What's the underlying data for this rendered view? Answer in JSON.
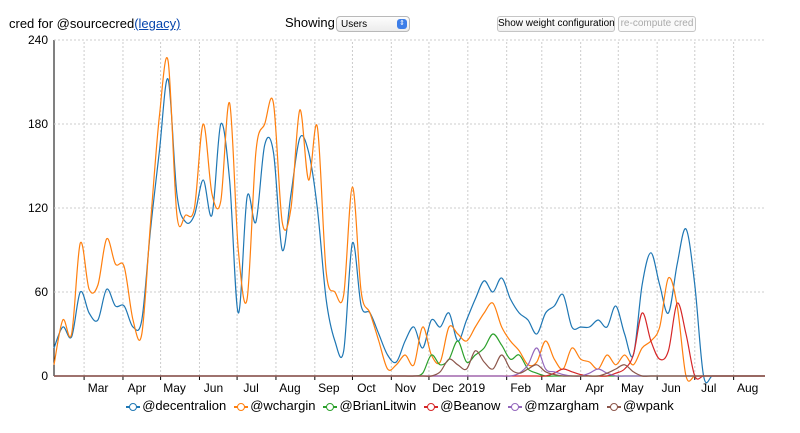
{
  "header": {
    "title_prefix": "cred for @sourcecred",
    "legacy_link": "(legacy)",
    "showing_label": "Showing:",
    "showing_value": "Users",
    "weight_button": "Show weight configuration",
    "recompute_button": "re-compute cred"
  },
  "chart_data": {
    "type": "line",
    "title": "",
    "xlabel": "",
    "ylabel": "",
    "ylim": [
      0,
      240
    ],
    "yticks": [
      0,
      60,
      120,
      180,
      240
    ],
    "x_tick_labels": [
      "Mar",
      "Apr",
      "May",
      "Jun",
      "Jul",
      "Aug",
      "Sep",
      "Oct",
      "Nov",
      "Dec",
      "2019",
      "Feb",
      "Mar",
      "Apr",
      "May",
      "Jun",
      "Jul",
      "Aug"
    ],
    "grid": true,
    "legend_position": "bottom",
    "x": [
      "2018-02-05",
      "2018-02-12",
      "2018-02-19",
      "2018-02-26",
      "2018-03-05",
      "2018-03-12",
      "2018-03-19",
      "2018-03-26",
      "2018-04-02",
      "2018-04-09",
      "2018-04-16",
      "2018-04-23",
      "2018-04-30",
      "2018-05-07",
      "2018-05-14",
      "2018-05-21",
      "2018-05-28",
      "2018-06-04",
      "2018-06-11",
      "2018-06-18",
      "2018-06-25",
      "2018-07-02",
      "2018-07-09",
      "2018-07-16",
      "2018-07-23",
      "2018-07-30",
      "2018-08-06",
      "2018-08-13",
      "2018-08-20",
      "2018-08-27",
      "2018-09-03",
      "2018-09-10",
      "2018-09-17",
      "2018-09-24",
      "2018-10-01",
      "2018-10-08",
      "2018-10-15",
      "2018-10-22",
      "2018-10-29",
      "2018-11-05",
      "2018-11-12",
      "2018-11-19",
      "2018-11-26",
      "2018-12-03",
      "2018-12-10",
      "2018-12-17",
      "2018-12-24",
      "2018-12-31",
      "2019-01-07",
      "2019-01-14",
      "2019-01-21",
      "2019-01-28",
      "2019-02-04",
      "2019-02-11",
      "2019-02-18",
      "2019-02-25",
      "2019-03-04",
      "2019-03-11",
      "2019-03-18",
      "2019-03-25",
      "2019-04-01",
      "2019-04-08",
      "2019-04-15",
      "2019-04-22",
      "2019-04-29",
      "2019-05-06",
      "2019-05-13",
      "2019-05-20",
      "2019-05-27",
      "2019-06-03",
      "2019-06-10",
      "2019-06-17",
      "2019-06-24",
      "2019-07-01",
      "2019-07-08",
      "2019-07-15",
      "2019-07-22",
      "2019-07-29",
      "2019-08-05",
      "2019-08-12",
      "2019-08-19",
      "2019-08-26"
    ],
    "series": [
      {
        "name": "@decentralion",
        "color": "#1f77b4",
        "values": [
          20,
          35,
          28,
          60,
          45,
          40,
          62,
          50,
          50,
          35,
          40,
          105,
          160,
          212,
          130,
          110,
          115,
          140,
          115,
          180,
          140,
          45,
          128,
          110,
          165,
          160,
          90,
          130,
          170,
          160,
          120,
          55,
          25,
          18,
          95,
          50,
          45,
          30,
          15,
          10,
          25,
          35,
          20,
          40,
          35,
          45,
          25,
          40,
          55,
          68,
          60,
          70,
          55,
          45,
          40,
          30,
          45,
          50,
          58,
          35,
          35,
          35,
          40,
          35,
          50,
          30,
          15,
          65,
          88,
          65,
          45,
          80,
          105,
          65,
          0,
          0,
          0,
          0,
          0,
          0,
          0,
          0
        ]
      },
      {
        "name": "@wchargin",
        "color": "#ff7f0e",
        "values": [
          8,
          40,
          30,
          95,
          62,
          65,
          98,
          80,
          78,
          40,
          30,
          110,
          185,
          225,
          115,
          115,
          120,
          180,
          130,
          125,
          195,
          90,
          55,
          160,
          180,
          195,
          110,
          120,
          190,
          140,
          178,
          75,
          60,
          58,
          135,
          60,
          45,
          25,
          5,
          8,
          15,
          8,
          35,
          15,
          10,
          35,
          30,
          25,
          35,
          45,
          52,
          35,
          25,
          18,
          8,
          10,
          25,
          12,
          5,
          20,
          12,
          10,
          5,
          15,
          8,
          15,
          8,
          20,
          25,
          35,
          70,
          50,
          0,
          0,
          0,
          0,
          0,
          0,
          0,
          0,
          0,
          0
        ]
      },
      {
        "name": "@BrianLitwin",
        "color": "#2ca02c",
        "values": [
          0,
          0,
          0,
          0,
          0,
          0,
          0,
          0,
          0,
          0,
          0,
          0,
          0,
          0,
          0,
          0,
          0,
          0,
          0,
          0,
          0,
          0,
          0,
          0,
          0,
          0,
          0,
          0,
          0,
          0,
          0,
          0,
          0,
          0,
          0,
          0,
          0,
          0,
          0,
          0,
          0,
          0,
          2,
          15,
          8,
          12,
          25,
          10,
          15,
          20,
          30,
          22,
          12,
          15,
          5,
          2,
          0,
          0,
          0,
          0,
          0,
          0,
          0,
          0,
          0,
          0,
          0,
          0,
          0,
          0,
          0,
          0,
          0,
          0,
          0,
          0,
          0,
          0,
          0,
          0,
          0,
          0
        ]
      },
      {
        "name": "@Beanow",
        "color": "#d62728",
        "values": [
          0,
          0,
          0,
          0,
          0,
          0,
          0,
          0,
          0,
          0,
          0,
          0,
          0,
          0,
          0,
          0,
          0,
          0,
          0,
          0,
          0,
          0,
          0,
          0,
          0,
          0,
          0,
          0,
          0,
          0,
          0,
          0,
          0,
          0,
          0,
          0,
          0,
          0,
          0,
          0,
          0,
          0,
          0,
          0,
          0,
          0,
          0,
          0,
          0,
          0,
          0,
          0,
          0,
          0,
          0,
          0,
          0,
          2,
          5,
          3,
          1,
          0,
          0,
          0,
          2,
          5,
          15,
          45,
          25,
          12,
          18,
          52,
          30,
          0,
          0,
          0,
          0,
          0,
          0,
          0,
          0,
          0
        ]
      },
      {
        "name": "@mzargham",
        "color": "#9467bd",
        "values": [
          0,
          0,
          0,
          0,
          0,
          0,
          0,
          0,
          0,
          0,
          0,
          0,
          0,
          0,
          0,
          0,
          0,
          0,
          0,
          0,
          0,
          0,
          0,
          0,
          0,
          0,
          0,
          0,
          0,
          0,
          0,
          0,
          0,
          0,
          0,
          0,
          0,
          0,
          0,
          0,
          0,
          0,
          0,
          0,
          0,
          0,
          0,
          0,
          0,
          0,
          0,
          0,
          0,
          2,
          8,
          20,
          5,
          3,
          1,
          0,
          0,
          2,
          5,
          2,
          0,
          0,
          0,
          0,
          0,
          0,
          0,
          0,
          0,
          0,
          0,
          0,
          0,
          0,
          0,
          0,
          0,
          0
        ]
      },
      {
        "name": "@wpank",
        "color": "#8c564b",
        "values": [
          0,
          0,
          0,
          0,
          0,
          0,
          0,
          0,
          0,
          0,
          0,
          0,
          0,
          0,
          0,
          0,
          0,
          0,
          0,
          0,
          0,
          0,
          0,
          0,
          0,
          0,
          0,
          0,
          0,
          0,
          0,
          0,
          0,
          0,
          0,
          0,
          0,
          0,
          0,
          0,
          0,
          0,
          0,
          0,
          3,
          12,
          8,
          5,
          18,
          10,
          5,
          15,
          5,
          2,
          5,
          8,
          3,
          1,
          0,
          0,
          0,
          0,
          0,
          2,
          5,
          8,
          3,
          0,
          0,
          0,
          0,
          0,
          0,
          0,
          0,
          0,
          0,
          0,
          0,
          0,
          0,
          0
        ]
      }
    ]
  }
}
